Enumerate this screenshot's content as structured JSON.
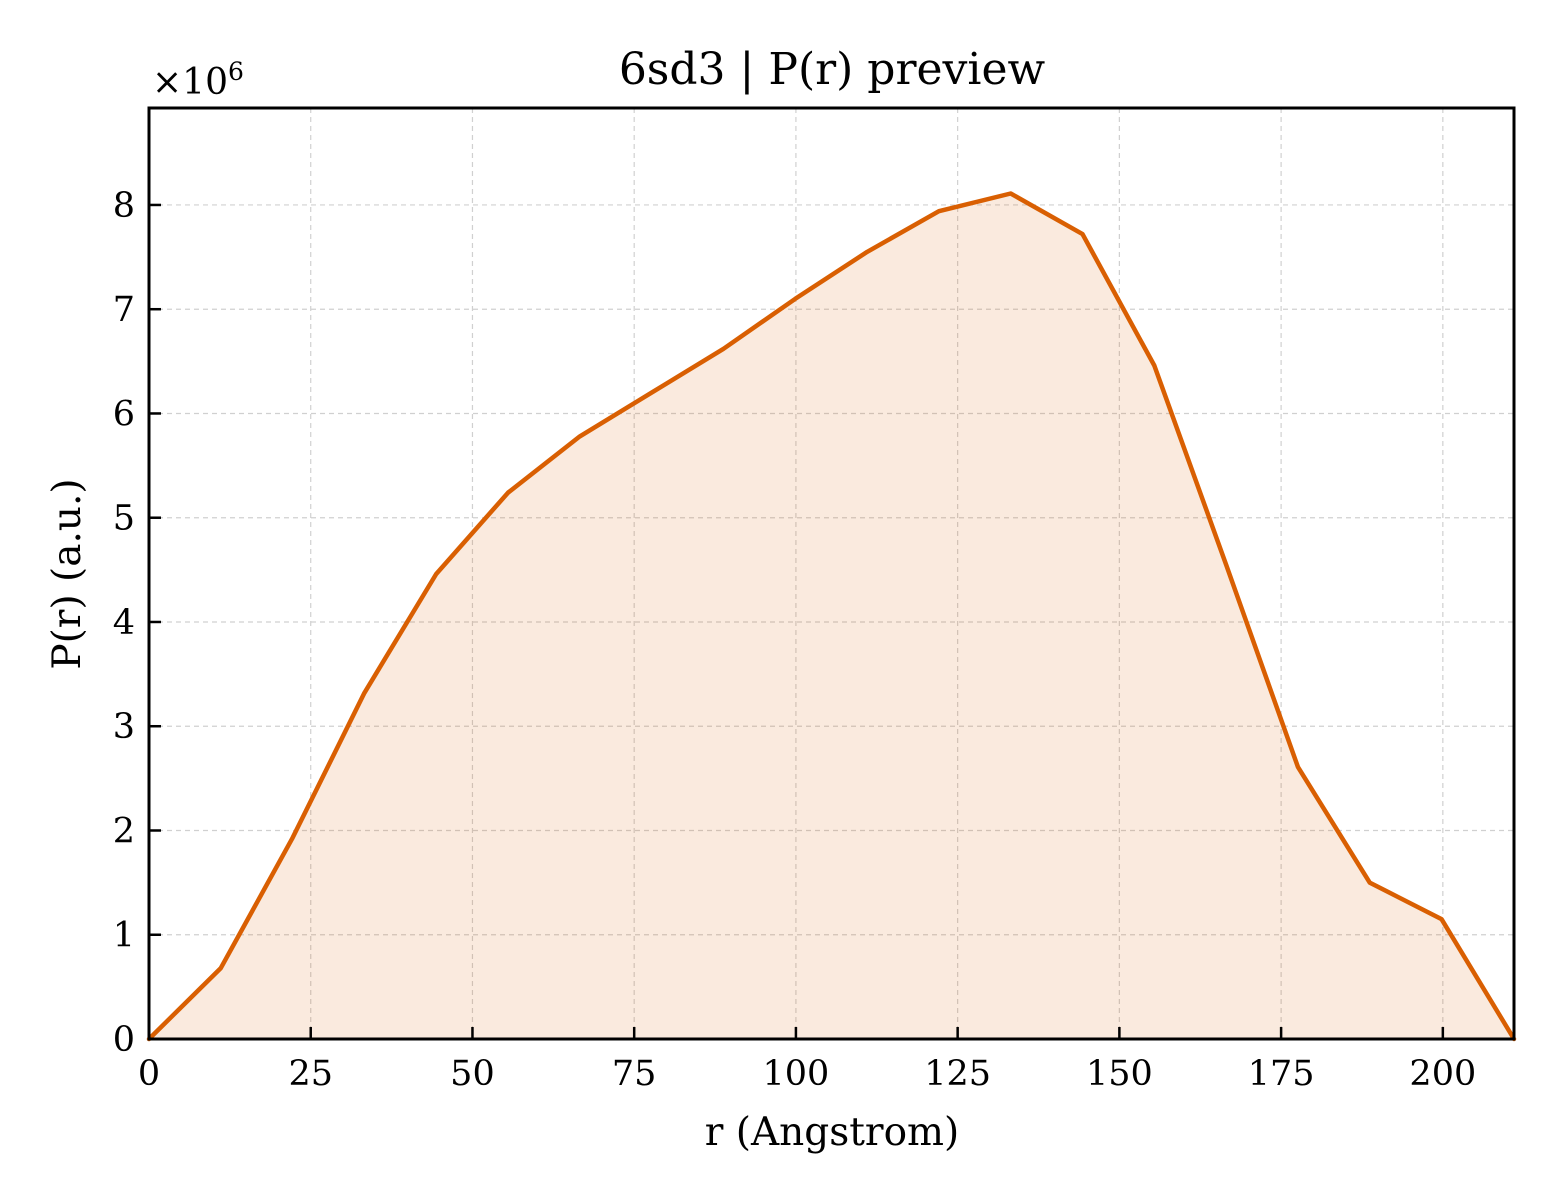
{
  "chart_data": {
    "type": "area",
    "title": "6sd3 | P(r) preview",
    "xlabel": "r (Angstrom)",
    "ylabel": "P(r) (a.u.)",
    "y_offset_base": "×10",
    "y_offset_exp": "6",
    "xlim": [
      0,
      211
    ],
    "ylim": [
      0,
      8.93
    ],
    "y_multiplier": 1000000,
    "xticks": [
      0,
      25,
      50,
      75,
      100,
      125,
      150,
      175,
      200
    ],
    "yticks": [
      0,
      1,
      2,
      3,
      4,
      5,
      6,
      7,
      8
    ],
    "grid": true,
    "legend": "none",
    "series": [
      {
        "x": [
          0,
          11.1,
          22.2,
          33.3,
          44.4,
          55.5,
          66.6,
          77.7,
          88.8,
          99.9,
          111.0,
          122.1,
          133.2,
          144.3,
          155.4,
          166.5,
          177.6,
          188.7,
          199.8,
          211.0
        ],
        "y": [
          0,
          0.68,
          1.93,
          3.32,
          4.46,
          5.24,
          5.78,
          6.2,
          6.62,
          7.1,
          7.55,
          7.94,
          8.11,
          7.72,
          6.46,
          4.55,
          2.61,
          1.5,
          1.15,
          0.0
        ],
        "color": "#d95f02"
      }
    ]
  }
}
